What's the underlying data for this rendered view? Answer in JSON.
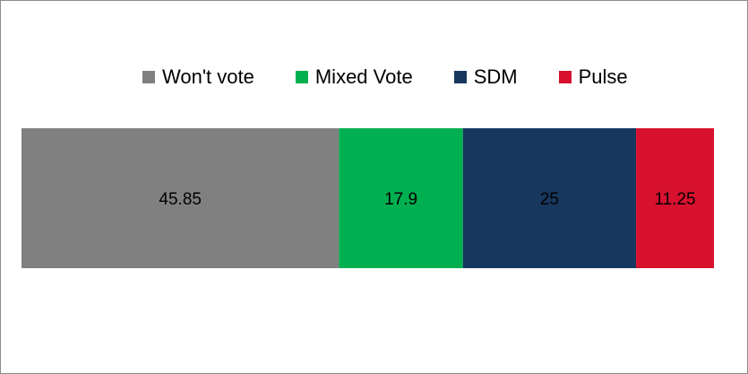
{
  "chart_data": {
    "type": "bar",
    "orientation": "horizontal-stacked-100",
    "categories": [
      ""
    ],
    "series": [
      {
        "name": "Won't vote",
        "values": [
          45.85
        ],
        "color": "#808080"
      },
      {
        "name": "Mixed Vote",
        "values": [
          17.9
        ],
        "color": "#00b050"
      },
      {
        "name": "SDM",
        "values": [
          25
        ],
        "color": "#17375e"
      },
      {
        "name": "Pulse",
        "values": [
          11.25
        ],
        "color": "#d7112e"
      }
    ],
    "data_labels": [
      "45.85",
      "17.9",
      "25",
      "11.25"
    ],
    "title": "",
    "xlabel": "",
    "ylabel": "",
    "xlim": [
      0,
      100
    ],
    "grid": false,
    "legend": "top"
  }
}
